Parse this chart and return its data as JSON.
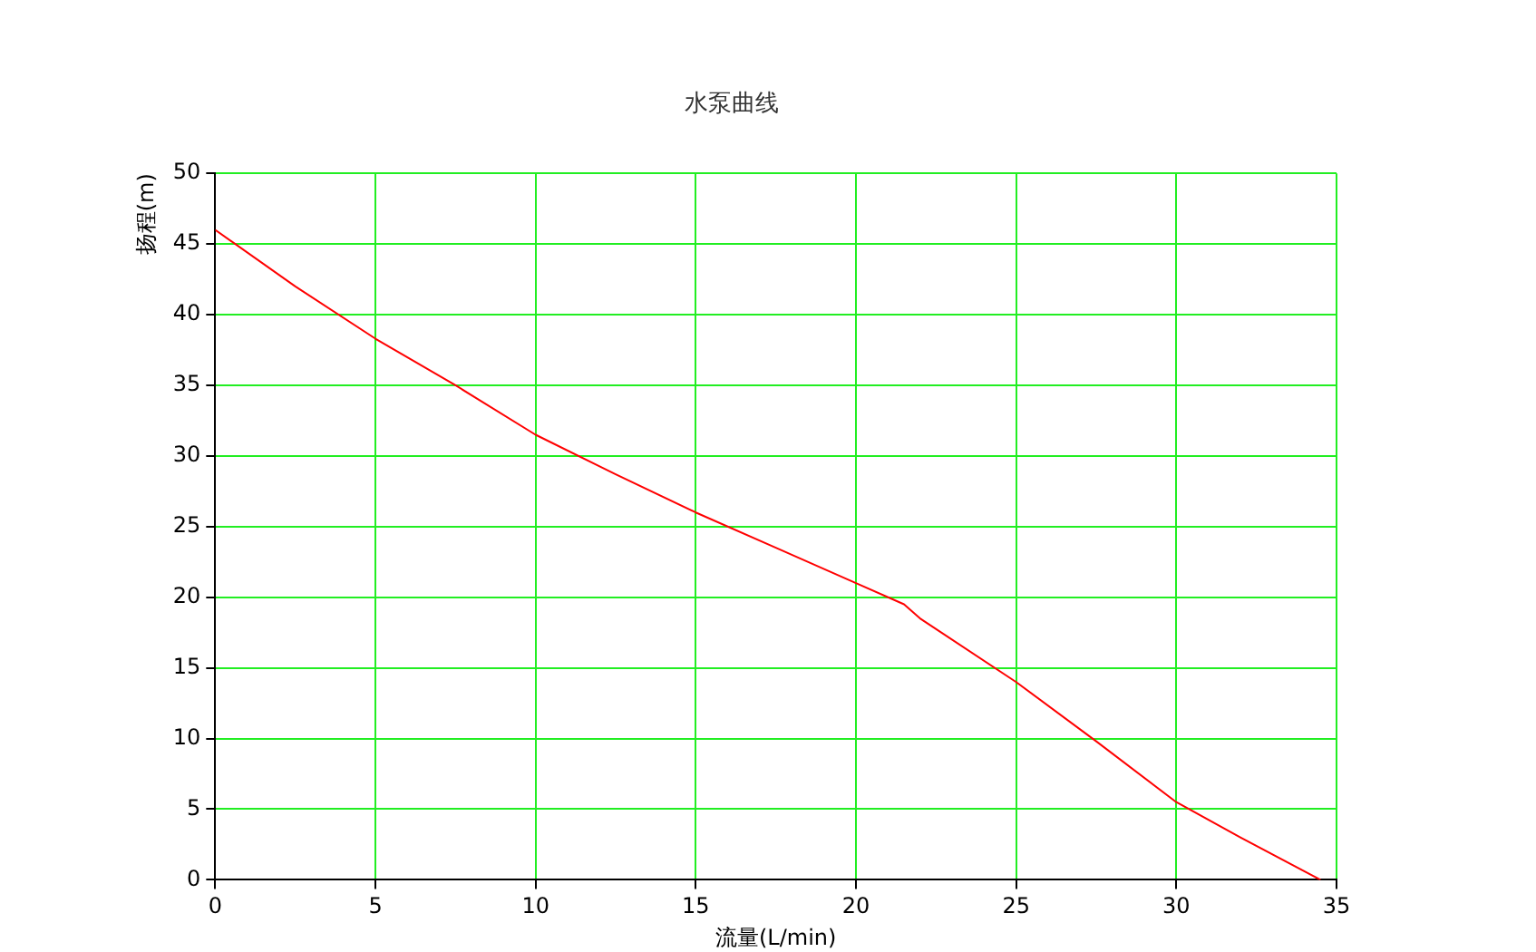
{
  "chart_data": {
    "type": "line",
    "title": "水泵曲线",
    "xlabel": "流量(L/min)",
    "ylabel": "扬程(m)",
    "x": [
      0,
      2.5,
      5,
      7.5,
      10,
      12.5,
      15,
      17.5,
      20,
      21.5,
      22,
      25,
      27.5,
      30,
      32,
      34.5
    ],
    "series": [
      {
        "color": "#ff0000",
        "values": [
          46,
          42,
          38.3,
          35,
          31.5,
          28.7,
          26,
          23.5,
          21,
          19.5,
          18.5,
          14,
          9.8,
          5.5,
          3,
          0
        ]
      }
    ],
    "xlim": [
      0,
      35
    ],
    "xticks": [
      0,
      5,
      10,
      15,
      20,
      25,
      30,
      35
    ],
    "ylim": [
      0,
      50
    ],
    "yticks": [
      0,
      5,
      10,
      15,
      20,
      25,
      30,
      35,
      40,
      45,
      50
    ],
    "grid": true,
    "legend": false,
    "marker": "none",
    "line_style": "solid"
  }
}
